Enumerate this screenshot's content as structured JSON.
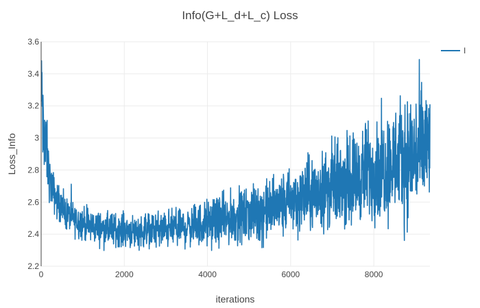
{
  "chart_data": {
    "type": "line",
    "title": "Info(G+L_d+L_c) Loss",
    "xlabel": "iterations",
    "ylabel": "Loss_Info",
    "xlim": [
      0,
      9350
    ],
    "ylim": [
      2.2,
      3.6
    ],
    "xticks": [
      0,
      2000,
      4000,
      6000,
      8000
    ],
    "xtick_labels": [
      "0",
      "2000",
      "4000",
      "6000",
      "8000"
    ],
    "yticks": [
      2.2,
      2.4,
      2.6,
      2.8,
      3.0,
      3.2,
      3.4,
      3.6
    ],
    "ytick_labels": [
      "2.2",
      "2.4",
      "2.6",
      "2.8",
      "3",
      "3.2",
      "3.4",
      "3.6"
    ],
    "grid": true,
    "legend_position": "top-right",
    "series": [
      {
        "name": "I",
        "color": "#1f77b4",
        "x": [
          0,
          20,
          40,
          60,
          80,
          100,
          120,
          140,
          160,
          180,
          200,
          250,
          300,
          350,
          400,
          500,
          600,
          700,
          800,
          900,
          1000,
          1200,
          1400,
          1600,
          1800,
          2000,
          2200,
          2400,
          2600,
          2800,
          3000,
          3200,
          3400,
          3600,
          3800,
          4000,
          4200,
          4400,
          4600,
          4800,
          5000,
          5200,
          5400,
          5600,
          5800,
          6000,
          6200,
          6400,
          6600,
          6800,
          7000,
          7200,
          7400,
          7600,
          7800,
          8000,
          8200,
          8400,
          8600,
          8800,
          9000,
          9200,
          9350
        ],
        "mean": [
          3.2,
          3.3,
          3.1,
          2.95,
          3.05,
          2.9,
          2.95,
          2.9,
          2.82,
          2.8,
          2.75,
          2.7,
          2.66,
          2.63,
          2.6,
          2.56,
          2.53,
          2.51,
          2.49,
          2.48,
          2.47,
          2.45,
          2.44,
          2.43,
          2.43,
          2.43,
          2.42,
          2.42,
          2.43,
          2.43,
          2.43,
          2.44,
          2.44,
          2.45,
          2.46,
          2.47,
          2.48,
          2.49,
          2.5,
          2.51,
          2.52,
          2.53,
          2.55,
          2.57,
          2.58,
          2.6,
          2.62,
          2.64,
          2.66,
          2.68,
          2.7,
          2.72,
          2.74,
          2.76,
          2.78,
          2.8,
          2.82,
          2.84,
          2.86,
          2.88,
          2.9,
          2.92,
          2.93
        ],
        "spread": [
          0.15,
          0.15,
          0.15,
          0.12,
          0.12,
          0.12,
          0.1,
          0.1,
          0.09,
          0.08,
          0.07,
          0.06,
          0.06,
          0.06,
          0.055,
          0.05,
          0.05,
          0.05,
          0.05,
          0.05,
          0.05,
          0.05,
          0.05,
          0.05,
          0.05,
          0.05,
          0.05,
          0.05,
          0.05,
          0.055,
          0.055,
          0.06,
          0.06,
          0.06,
          0.065,
          0.07,
          0.07,
          0.075,
          0.08,
          0.08,
          0.085,
          0.09,
          0.09,
          0.095,
          0.1,
          0.1,
          0.11,
          0.11,
          0.12,
          0.12,
          0.13,
          0.13,
          0.14,
          0.14,
          0.15,
          0.15,
          0.16,
          0.17,
          0.18,
          0.19,
          0.2,
          0.21,
          0.22
        ],
        "min_value": 2.27,
        "max_value": 3.54
      }
    ]
  }
}
